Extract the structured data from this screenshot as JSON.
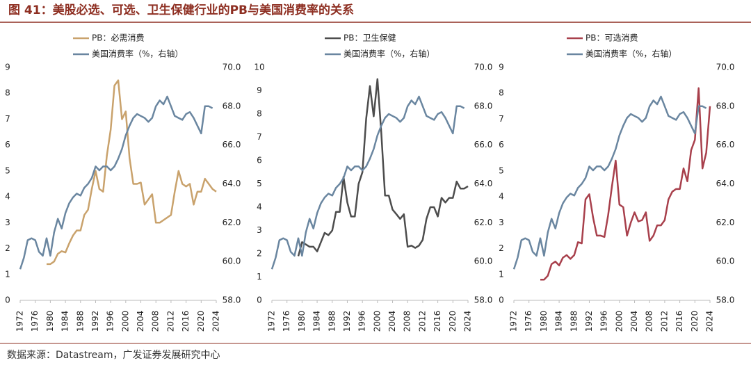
{
  "title": "图 41：美股必选、可选、卫生保健行业的PB与美国消费率的关系",
  "source": "数据来源：Datastream，广发证券发展研究中心",
  "chart_data": [
    {
      "type": "line",
      "x": [
        1972,
        1973,
        1974,
        1975,
        1976,
        1977,
        1978,
        1979,
        1980,
        1981,
        1982,
        1983,
        1984,
        1985,
        1986,
        1987,
        1988,
        1989,
        1990,
        1991,
        1992,
        1993,
        1994,
        1995,
        1996,
        1997,
        1998,
        1999,
        2000,
        2001,
        2002,
        2003,
        2004,
        2005,
        2006,
        2007,
        2008,
        2009,
        2010,
        2011,
        2012,
        2013,
        2014,
        2015,
        2016,
        2017,
        2018,
        2019,
        2020,
        2021,
        2022,
        2023,
        2024
      ],
      "xlim": [
        1972,
        2024
      ],
      "xticks": [
        1972,
        1976,
        1980,
        1984,
        1988,
        1992,
        1996,
        2000,
        2004,
        2008,
        2012,
        2016,
        2020,
        2024
      ],
      "ylim": [
        0,
        9
      ],
      "yticks": [
        0,
        1,
        2,
        3,
        4,
        5,
        6,
        7,
        8,
        9
      ],
      "y2lim": [
        58,
        70
      ],
      "y2ticks": [
        {
          "value": 58,
          "label": "58.0"
        },
        {
          "value": 60,
          "label": "60.0"
        },
        {
          "value": 62,
          "label": "62.0"
        },
        {
          "value": 64,
          "label": "64.0"
        },
        {
          "value": 66,
          "label": "66.0"
        },
        {
          "value": 68,
          "label": "68.0"
        },
        {
          "value": 70,
          "label": "70.0"
        }
      ],
      "series": [
        {
          "name": "PB：必需消费",
          "color": "#c9a26c",
          "values": [
            null,
            null,
            null,
            null,
            null,
            null,
            null,
            1.4,
            1.4,
            1.5,
            1.8,
            1.9,
            1.85,
            2.2,
            2.5,
            2.7,
            2.7,
            3.3,
            3.5,
            4.3,
            5.0,
            4.3,
            4.2,
            5.6,
            6.6,
            8.3,
            8.5,
            7.0,
            7.3,
            5.5,
            4.5,
            4.5,
            4.55,
            3.7,
            3.9,
            4.1,
            3.0,
            3.0,
            3.1,
            3.2,
            3.3,
            4.2,
            5.0,
            4.5,
            4.4,
            4.5,
            3.7,
            4.2,
            4.2,
            4.7,
            4.5,
            4.3,
            4.2
          ]
        },
        {
          "name": "美国消费率（%，右轴）",
          "color": "#6a86a0",
          "axis": "y2",
          "values": [
            59.6,
            60.2,
            61.1,
            61.2,
            61.1,
            60.5,
            60.3,
            61.2,
            60.3,
            61.5,
            62.2,
            61.7,
            62.5,
            63.0,
            63.3,
            63.5,
            63.4,
            63.8,
            64.0,
            64.3,
            64.9,
            64.7,
            64.9,
            64.9,
            64.7,
            64.9,
            65.3,
            65.8,
            66.5,
            67.0,
            67.4,
            67.6,
            67.5,
            67.4,
            67.2,
            67.4,
            68.0,
            68.3,
            68.1,
            68.5,
            68.0,
            67.5,
            67.4,
            67.3,
            67.6,
            67.7,
            67.4,
            67.0,
            66.6,
            68.0,
            68.0,
            67.9,
            null
          ]
        }
      ]
    },
    {
      "type": "line",
      "x": [
        1972,
        1973,
        1974,
        1975,
        1976,
        1977,
        1978,
        1979,
        1980,
        1981,
        1982,
        1983,
        1984,
        1985,
        1986,
        1987,
        1988,
        1989,
        1990,
        1991,
        1992,
        1993,
        1994,
        1995,
        1996,
        1997,
        1998,
        1999,
        2000,
        2001,
        2002,
        2003,
        2004,
        2005,
        2006,
        2007,
        2008,
        2009,
        2010,
        2011,
        2012,
        2013,
        2014,
        2015,
        2016,
        2017,
        2018,
        2019,
        2020,
        2021,
        2022,
        2023,
        2024
      ],
      "xlim": [
        1972,
        2024
      ],
      "xticks": [
        1972,
        1976,
        1980,
        1984,
        1988,
        1992,
        1996,
        2000,
        2004,
        2008,
        2012,
        2016,
        2020,
        2024
      ],
      "ylim": [
        0,
        10
      ],
      "yticks": [
        0,
        1,
        2,
        3,
        4,
        5,
        6,
        7,
        8,
        9,
        10
      ],
      "y2lim": [
        58,
        70
      ],
      "y2ticks": [
        {
          "value": 58,
          "label": "58.0"
        },
        {
          "value": 60,
          "label": "60.0"
        },
        {
          "value": 62,
          "label": "62.0"
        },
        {
          "value": 64,
          "label": "64.0"
        },
        {
          "value": 66,
          "label": "66.0"
        },
        {
          "value": 68,
          "label": "68.0"
        },
        {
          "value": 70,
          "label": "70.0"
        }
      ],
      "series": [
        {
          "name": "PB：卫生保健",
          "color": "#4d4d4d",
          "values": [
            null,
            null,
            null,
            null,
            null,
            null,
            null,
            1.9,
            2.5,
            2.4,
            2.3,
            2.3,
            2.1,
            2.5,
            2.9,
            2.8,
            3.0,
            3.8,
            3.8,
            5.3,
            4.2,
            3.6,
            3.6,
            5.0,
            5.5,
            7.8,
            9.2,
            7.9,
            9.5,
            7.2,
            4.5,
            4.5,
            3.9,
            3.7,
            3.5,
            3.7,
            2.3,
            2.35,
            2.25,
            2.35,
            2.6,
            3.5,
            4.0,
            4.0,
            3.6,
            4.4,
            4.2,
            4.4,
            4.4,
            5.1,
            4.8,
            4.8,
            4.9
          ]
        },
        {
          "name": "美国消费率（%，右轴）",
          "color": "#6a86a0",
          "axis": "y2",
          "values": [
            59.6,
            60.2,
            61.1,
            61.2,
            61.1,
            60.5,
            60.3,
            61.2,
            60.3,
            61.5,
            62.2,
            61.7,
            62.5,
            63.0,
            63.3,
            63.5,
            63.4,
            63.8,
            64.0,
            64.3,
            64.9,
            64.7,
            64.9,
            64.9,
            64.7,
            64.9,
            65.3,
            65.8,
            66.5,
            67.0,
            67.4,
            67.6,
            67.5,
            67.4,
            67.2,
            67.4,
            68.0,
            68.3,
            68.1,
            68.5,
            68.0,
            67.5,
            67.4,
            67.3,
            67.6,
            67.7,
            67.4,
            67.0,
            66.6,
            68.0,
            68.0,
            67.9,
            null
          ]
        }
      ]
    },
    {
      "type": "line",
      "x": [
        1972,
        1973,
        1974,
        1975,
        1976,
        1977,
        1978,
        1979,
        1980,
        1981,
        1982,
        1983,
        1984,
        1985,
        1986,
        1987,
        1988,
        1989,
        1990,
        1991,
        1992,
        1993,
        1994,
        1995,
        1996,
        1997,
        1998,
        1999,
        2000,
        2001,
        2002,
        2003,
        2004,
        2005,
        2006,
        2007,
        2008,
        2009,
        2010,
        2011,
        2012,
        2013,
        2014,
        2015,
        2016,
        2017,
        2018,
        2019,
        2020,
        2021,
        2022,
        2023,
        2024
      ],
      "xlim": [
        1972,
        2024
      ],
      "xticks": [
        1972,
        1976,
        1980,
        1984,
        1988,
        1992,
        1996,
        2000,
        2004,
        2008,
        2012,
        2016,
        2020,
        2024
      ],
      "ylim": [
        0,
        9
      ],
      "yticks": [
        0,
        1,
        2,
        3,
        4,
        5,
        6,
        7,
        8,
        9
      ],
      "y2lim": [
        58,
        70
      ],
      "y2ticks": [
        {
          "value": 58,
          "label": "58.0"
        },
        {
          "value": 60,
          "label": "60.0"
        },
        {
          "value": 62,
          "label": "62.0"
        },
        {
          "value": 64,
          "label": "64.0"
        },
        {
          "value": 66,
          "label": "66.0"
        },
        {
          "value": 68,
          "label": "68.0"
        },
        {
          "value": 70,
          "label": "70.0"
        }
      ],
      "series": [
        {
          "name": "PB：可选消费",
          "color": "#a8404c",
          "values": [
            null,
            null,
            null,
            null,
            null,
            null,
            null,
            0.8,
            0.8,
            0.95,
            1.4,
            1.5,
            1.35,
            1.65,
            1.75,
            1.6,
            1.75,
            2.25,
            2.2,
            3.9,
            4.1,
            3.2,
            2.5,
            2.5,
            2.45,
            3.3,
            4.4,
            5.4,
            3.7,
            3.6,
            2.5,
            3.0,
            3.4,
            3.05,
            3.1,
            3.4,
            2.3,
            2.5,
            2.9,
            2.9,
            3.1,
            3.9,
            4.2,
            4.3,
            4.3,
            5.1,
            4.6,
            5.8,
            6.2,
            8.2,
            5.1,
            5.7,
            7.5
          ]
        },
        {
          "name": "美国消费率（%，右轴）",
          "color": "#6a86a0",
          "axis": "y2",
          "values": [
            59.6,
            60.2,
            61.1,
            61.2,
            61.1,
            60.5,
            60.3,
            61.2,
            60.3,
            61.5,
            62.2,
            61.7,
            62.5,
            63.0,
            63.3,
            63.5,
            63.4,
            63.8,
            64.0,
            64.3,
            64.9,
            64.7,
            64.9,
            64.9,
            64.7,
            64.9,
            65.3,
            65.8,
            66.5,
            67.0,
            67.4,
            67.6,
            67.5,
            67.4,
            67.2,
            67.4,
            68.0,
            68.3,
            68.1,
            68.5,
            68.0,
            67.5,
            67.4,
            67.3,
            67.6,
            67.7,
            67.4,
            67.0,
            66.6,
            68.0,
            68.0,
            67.9,
            null
          ]
        }
      ]
    }
  ]
}
